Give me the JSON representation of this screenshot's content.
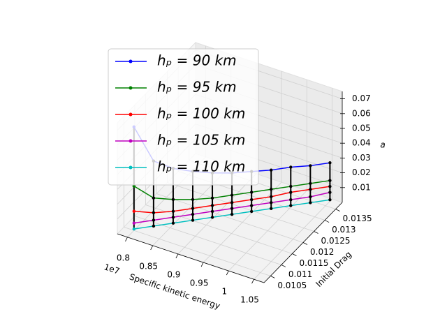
{
  "chart_data": {
    "type": "line3d",
    "x_label": "Specific kinetic energy",
    "x_offset_text": "1e7",
    "y_label": "Initial Drag",
    "z_label": "a",
    "x": [
      0.8,
      0.825,
      0.85,
      0.875,
      0.9,
      0.925,
      0.95,
      0.975,
      1.0,
      1.025,
      1.05
    ],
    "y": [
      0.0105,
      0.01082,
      0.01114,
      0.01146,
      0.01178,
      0.0121,
      0.01242,
      0.01274,
      0.01306,
      0.01338,
      0.0137
    ],
    "series": [
      {
        "name": "hₚ = 90 km",
        "color": "#0000ff",
        "values": [
          0.07,
          0.045,
          0.038,
          0.034,
          0.031,
          0.029,
          0.028,
          0.027,
          0.027,
          0.026,
          0.026
        ]
      },
      {
        "name": "hₚ = 95 km",
        "color": "#008000",
        "values": [
          0.03,
          0.02,
          0.017,
          0.015,
          0.014,
          0.014,
          0.014,
          0.014,
          0.014,
          0.014,
          0.014
        ]
      },
      {
        "name": "hₚ = 100 km",
        "color": "#ff0000",
        "values": [
          0.013,
          0.01,
          0.009,
          0.009,
          0.009,
          0.009,
          0.009,
          0.009,
          0.01,
          0.01,
          0.01
        ]
      },
      {
        "name": "hₚ = 105 km",
        "color": "#bf00bf",
        "values": [
          0.005,
          0.005,
          0.005,
          0.005,
          0.005,
          0.005,
          0.005,
          0.005,
          0.005,
          0.005,
          0.006
        ]
      },
      {
        "name": "hₚ = 110 km",
        "color": "#00bfbf",
        "values": [
          0.001,
          0.001,
          0.001,
          0.001,
          0.001,
          0.001,
          0.001,
          0.001,
          0.001,
          0.001,
          0.001
        ]
      }
    ],
    "xlim": [
      0.78,
      1.07
    ],
    "ylim": [
      0.0102,
      0.0138
    ],
    "zlim": [
      0,
      0.075
    ],
    "xticks": [
      0.8,
      0.85,
      0.9,
      0.95,
      1.0,
      1.05
    ],
    "yticks": [
      0.0105,
      0.011,
      0.0115,
      0.012,
      0.0125,
      0.013,
      0.0135
    ],
    "zticks": [
      0.01,
      0.02,
      0.03,
      0.04,
      0.05,
      0.06,
      0.07
    ],
    "grid": true,
    "legend": "upper left"
  }
}
